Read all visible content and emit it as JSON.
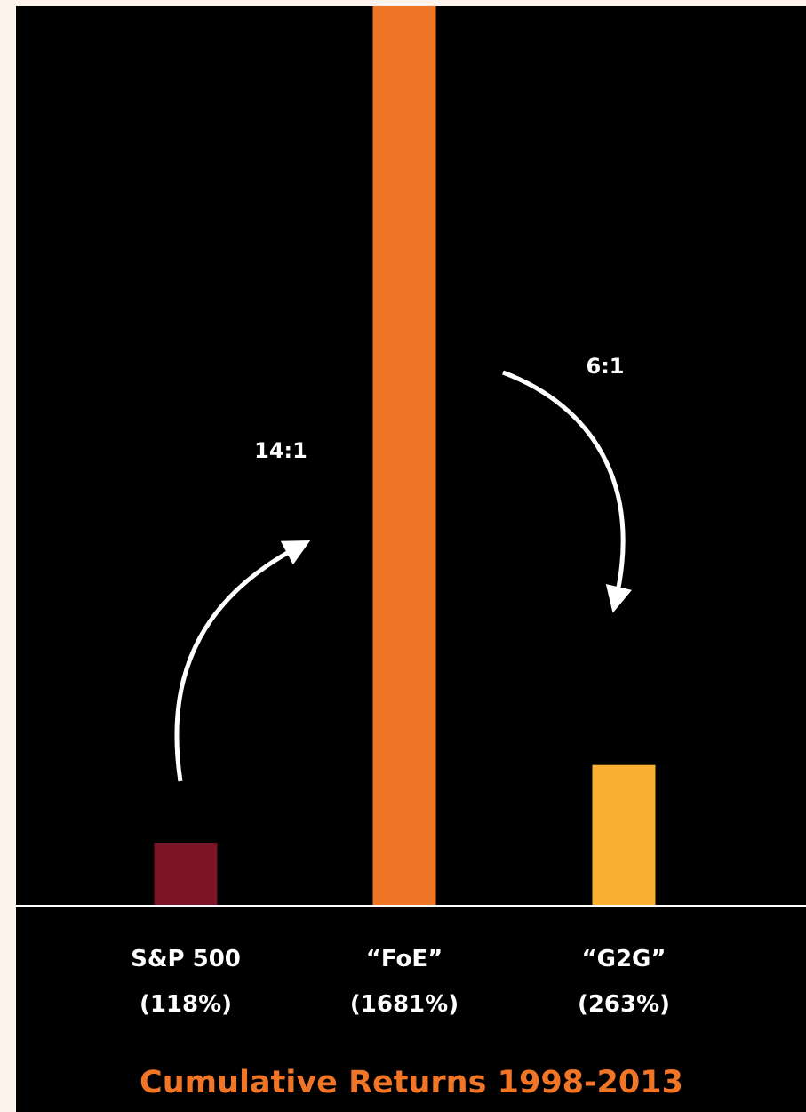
{
  "chart_data": {
    "type": "bar",
    "title": "Cumulative Returns 1998-2013",
    "categories": [
      "S&P 500",
      "“FoE”",
      "“G2G”"
    ],
    "value_labels": [
      "(118%)",
      "(1681%)",
      "(263%)"
    ],
    "values": [
      118,
      1681,
      263
    ],
    "ylim": [
      0,
      1681
    ],
    "grid": false,
    "legend": "none",
    "colors": [
      "#7a1426",
      "#f07526",
      "#fbb033"
    ],
    "annotations": [
      {
        "text": "14:1",
        "from": "S&P 500",
        "to": "“FoE”"
      },
      {
        "text": "6:1",
        "from": "“FoE”",
        "to": "“G2G”"
      }
    ]
  },
  "style": {
    "background": "#000000",
    "text_color": "#ffffff",
    "title_color": "#f07526",
    "baseline_color": "#ffffff"
  }
}
